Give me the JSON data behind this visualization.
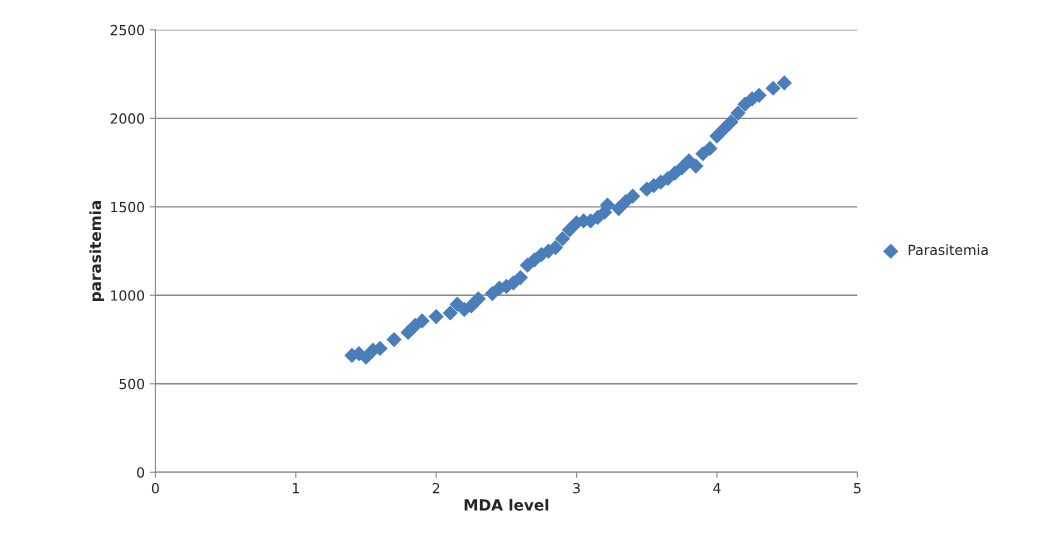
{
  "chart_data": {
    "type": "scatter",
    "xlabel": "MDA level",
    "ylabel": "parasitemia",
    "x": [
      1.4,
      1.45,
      1.5,
      1.55,
      1.6,
      1.7,
      1.8,
      1.85,
      1.9,
      2.0,
      2.1,
      2.15,
      2.2,
      2.25,
      2.3,
      2.4,
      2.45,
      2.5,
      2.55,
      2.6,
      2.65,
      2.7,
      2.75,
      2.8,
      2.85,
      2.9,
      2.95,
      3.0,
      3.05,
      3.1,
      3.15,
      3.2,
      3.22,
      3.3,
      3.35,
      3.4,
      3.5,
      3.55,
      3.6,
      3.65,
      3.7,
      3.75,
      3.8,
      3.85,
      3.9,
      3.95,
      4.0,
      4.05,
      4.1,
      4.15,
      4.2,
      4.25,
      4.3,
      4.4,
      4.48
    ],
    "series": [
      {
        "name": "Parasitemia",
        "color": "#4a7ebb",
        "values": [
          660,
          670,
          650,
          690,
          700,
          750,
          790,
          830,
          855,
          880,
          900,
          950,
          920,
          940,
          980,
          1010,
          1040,
          1050,
          1070,
          1100,
          1170,
          1200,
          1230,
          1250,
          1270,
          1320,
          1370,
          1410,
          1420,
          1420,
          1440,
          1470,
          1510,
          1490,
          1530,
          1560,
          1600,
          1620,
          1640,
          1660,
          1690,
          1720,
          1760,
          1730,
          1800,
          1830,
          1900,
          1940,
          1980,
          2030,
          2080,
          2110,
          2130,
          2170,
          2200
        ]
      }
    ],
    "xlim": [
      0,
      5
    ],
    "xticks": [
      0,
      1,
      2,
      3,
      4,
      5
    ],
    "ylim": [
      0,
      2500
    ],
    "yticks": [
      0,
      500,
      1000,
      1500,
      2000,
      2500
    ],
    "grid": "y",
    "legend": "right",
    "marker": "diamond"
  }
}
